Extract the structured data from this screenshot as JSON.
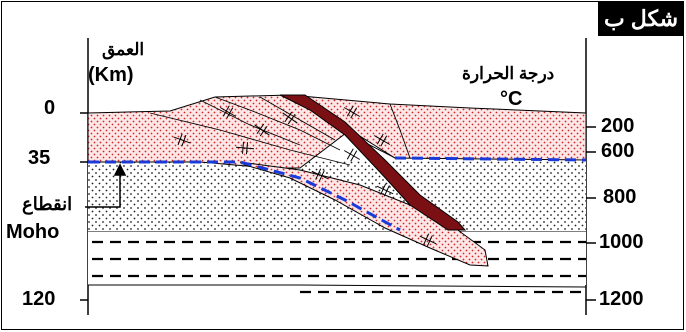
{
  "figure": {
    "badge": "شكل ب",
    "depth_title": "العمق",
    "depth_unit": "(Km)",
    "temp_title": "درجة الحرارة",
    "temp_unit": "°C",
    "moho_label_ar": "انقطاع",
    "moho_label": "Moho",
    "depth_ticks": [
      "0",
      "35",
      "120"
    ],
    "temp_ticks": [
      "200",
      "600",
      "800",
      "1000",
      "1200"
    ],
    "colors": {
      "crust_dots": "#d2282c",
      "dark_band": "#7a1014",
      "moho_line": "#1a3bd8",
      "outline": "#000000"
    }
  }
}
